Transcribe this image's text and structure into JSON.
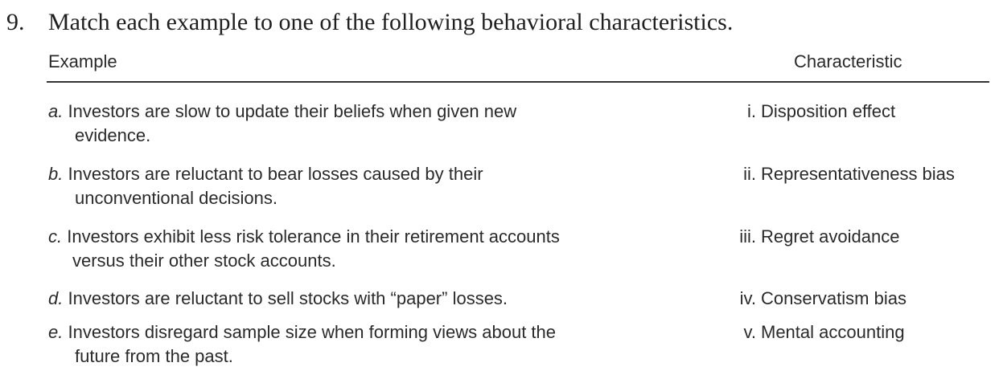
{
  "question": {
    "number": "9.",
    "text": "Match each example to one of the following behavioral characteristics."
  },
  "table": {
    "header_example": "Example",
    "header_characteristic": "Characteristic",
    "rows": [
      {
        "letter": "a.",
        "line1": "Investors are slow to update their beliefs when given new",
        "line2": "evidence.",
        "numeral": "i.",
        "characteristic": "Disposition effect"
      },
      {
        "letter": "b.",
        "line1": "Investors are reluctant to bear losses caused by their",
        "line2": "unconventional decisions.",
        "numeral": "ii.",
        "characteristic": "Representativeness bias"
      },
      {
        "letter": "c.",
        "line1": "Investors exhibit less risk tolerance in their retirement accounts",
        "line2": "versus their other stock accounts.",
        "numeral": "iii.",
        "characteristic": "Regret avoidance"
      },
      {
        "letter": "d.",
        "line1": "Investors are reluctant to sell stocks with “paper” losses.",
        "line2": "",
        "numeral": "iv.",
        "characteristic": "Conservatism bias"
      },
      {
        "letter": "e.",
        "line1": "Investors disregard sample size when forming views about the",
        "line2": "future from the past.",
        "numeral": "v.",
        "characteristic": "Mental accounting"
      }
    ]
  }
}
